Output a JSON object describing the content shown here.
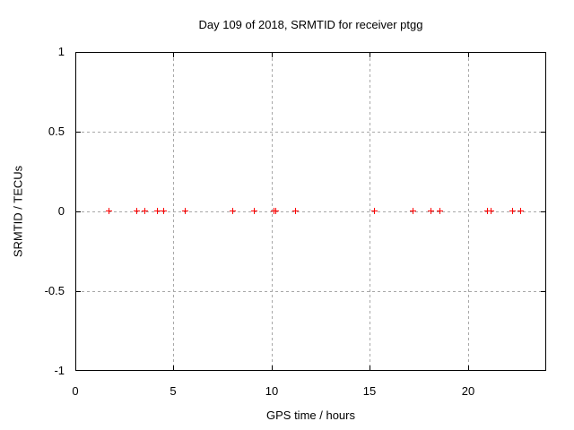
{
  "window": {
    "background": "#ffffff"
  },
  "chart_data": {
    "type": "scatter",
    "title": "Day 109 of 2018, SRMTID for receiver ptgg",
    "xlabel": "GPS time / hours",
    "ylabel": "SRMTID / TECUs",
    "xlim": [
      0,
      24
    ],
    "ylim": [
      -1,
      1
    ],
    "xticks": [
      0,
      5,
      10,
      15,
      20
    ],
    "xtick_labels": [
      "0",
      "5",
      "10",
      "15",
      "20"
    ],
    "yticks": [
      -1,
      -0.5,
      0,
      0.5,
      1
    ],
    "ytick_labels": [
      "-1",
      "-0.5",
      "0",
      "0.5",
      "1"
    ],
    "grid": true,
    "legend": "none",
    "marker": "plus",
    "colors": {
      "marker": "#ff0000",
      "grid": "#a8a8a8",
      "border": "#000000",
      "text": "#000000"
    },
    "series": [
      {
        "name": "SRMTID",
        "x": [
          1.72,
          3.15,
          3.58,
          4.21,
          4.54,
          5.64,
          8.05,
          9.15,
          10.17,
          10.26,
          11.25,
          15.28,
          17.23,
          18.14,
          18.61,
          21.04,
          21.22,
          22.32,
          22.74
        ],
        "y": [
          0,
          0,
          0,
          0,
          0,
          0,
          0,
          0,
          0,
          0,
          0,
          0,
          0,
          0,
          0,
          0,
          0,
          0,
          0
        ]
      }
    ]
  }
}
